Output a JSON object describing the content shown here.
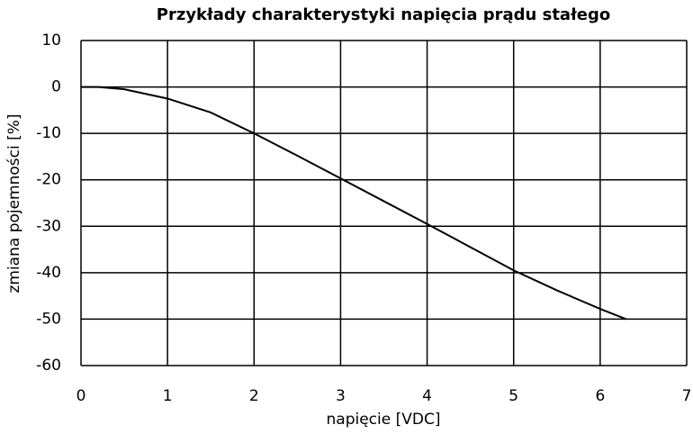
{
  "chart_data": {
    "type": "line",
    "title": "Przykłady charakterystyki napięcia prądu stałego",
    "x_label": "napięcie [VDC]",
    "y_label": "zmiana pojemności [%]",
    "x": [
      0,
      0.2,
      0.5,
      1,
      1.5,
      2,
      2.5,
      3,
      3.5,
      4,
      4.5,
      5,
      5.5,
      6,
      6.3
    ],
    "values": [
      0,
      0,
      -0.5,
      -2.5,
      -5.5,
      -10,
      -14.8,
      -19.7,
      -24.6,
      -29.5,
      -34.5,
      -39.5,
      -43.8,
      -47.8,
      -50
    ],
    "color": "#000000",
    "xlim": [
      0,
      7
    ],
    "xticks": [
      0,
      1,
      2,
      3,
      4,
      5,
      6,
      7
    ],
    "ylim": [
      -60,
      10
    ],
    "yticks": [
      -60,
      -50,
      -40,
      -30,
      -20,
      -10,
      0,
      10
    ],
    "grid": true
  }
}
